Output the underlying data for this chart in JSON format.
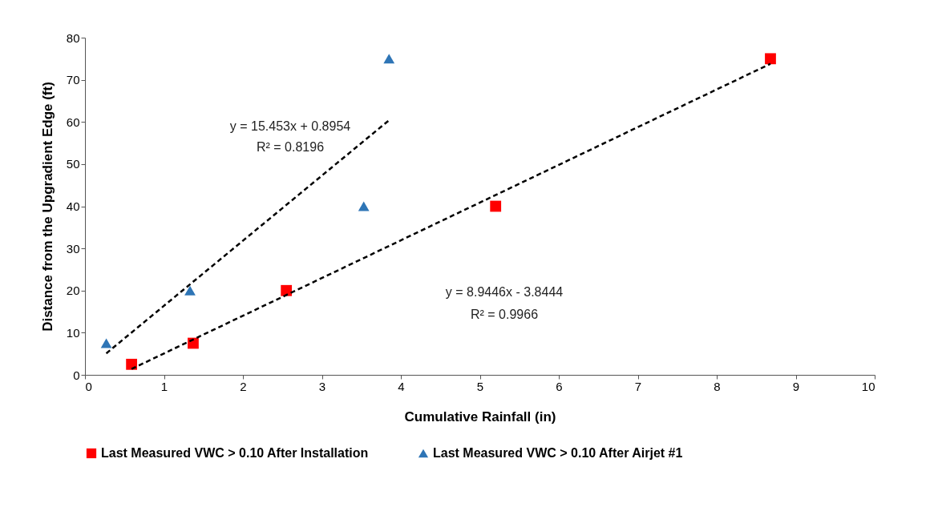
{
  "chart_data": {
    "type": "scatter",
    "xlabel": "Cumulative Rainfall (in)",
    "ylabel": "Distance from the Upgradient Edge (ft)",
    "xlim": [
      0,
      10
    ],
    "xticks": [
      0,
      1,
      2,
      3,
      4,
      5,
      6,
      7,
      8,
      9,
      10
    ],
    "ylim": [
      0,
      80
    ],
    "yticks": [
      0,
      10,
      20,
      30,
      40,
      50,
      60,
      70,
      80
    ],
    "grid": false,
    "legend": "bottom",
    "series": [
      {
        "name": "Last Measured VWC > 0.10 After Installation",
        "color": "#ff0000",
        "marker": "square",
        "x": [
          0.59,
          1.37,
          2.55,
          5.2,
          8.68
        ],
        "values": [
          2.5,
          7.5,
          20,
          40,
          75
        ]
      },
      {
        "name": "Last Measured VWC > 0.10 After Airjet #1",
        "color": "#2e75b6",
        "marker": "triangle",
        "x": [
          0.27,
          1.33,
          3.53,
          3.85
        ],
        "values": [
          7.5,
          20,
          40,
          75
        ]
      },
      {
        "type": "line",
        "color": "#000000",
        "line_style": "dashed",
        "marker": "none",
        "x": [
          0.27,
          3.85
        ],
        "values": [
          5.1,
          60.4
        ]
      },
      {
        "type": "line",
        "color": "#000000",
        "line_style": "dashed",
        "marker": "none",
        "x": [
          0.59,
          8.68
        ],
        "values": [
          1.4,
          73.8
        ]
      }
    ],
    "annotations": [
      "y = 15.453x + 0.8954",
      "R² = 0.8196",
      "y = 8.9446x - 3.8444",
      "R² = 0.9966"
    ]
  }
}
